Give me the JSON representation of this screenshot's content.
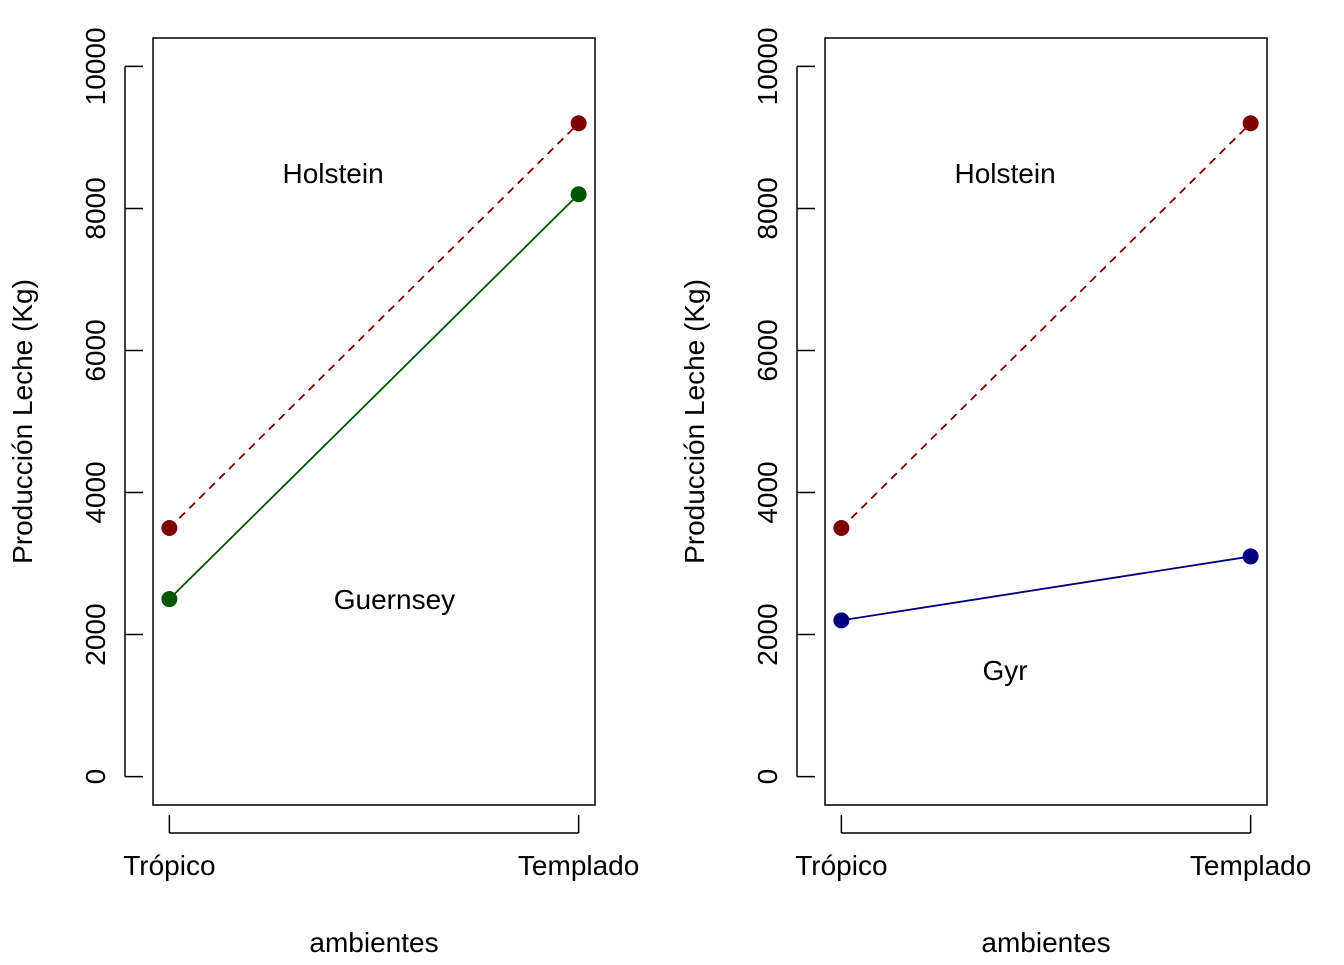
{
  "chart_data": [
    {
      "type": "line",
      "categories": [
        "Trópico",
        "Templado"
      ],
      "xlabel": "ambientes",
      "ylabel": "Producción Leche (Kg)",
      "ylim": [
        -400,
        10400
      ],
      "yticks": [
        0,
        2000,
        4000,
        6000,
        8000,
        10000
      ],
      "grid": false,
      "series": [
        {
          "name": "Holstein",
          "values": [
            3500,
            9200
          ],
          "color": "#7f0000",
          "line_style": "dashed",
          "label_pos": [
            1.4,
            8500
          ]
        },
        {
          "name": "Guernsey",
          "values": [
            2500,
            8200
          ],
          "color": "#005500",
          "line_style": "solid",
          "label_pos": [
            1.55,
            2500
          ]
        }
      ]
    },
    {
      "type": "line",
      "categories": [
        "Trópico",
        "Templado"
      ],
      "xlabel": "ambientes",
      "ylabel": "Producción Leche (Kg)",
      "ylim": [
        -400,
        10400
      ],
      "yticks": [
        0,
        2000,
        4000,
        6000,
        8000,
        10000
      ],
      "grid": false,
      "series": [
        {
          "name": "Holstein",
          "values": [
            3500,
            9200
          ],
          "color": "#7f0000",
          "line_style": "dashed",
          "label_pos": [
            1.4,
            8500
          ]
        },
        {
          "name": "Gyr",
          "values": [
            2200,
            3100
          ],
          "color": "#00007f",
          "line_style": "solid",
          "label_pos": [
            1.4,
            1500
          ]
        }
      ]
    }
  ]
}
